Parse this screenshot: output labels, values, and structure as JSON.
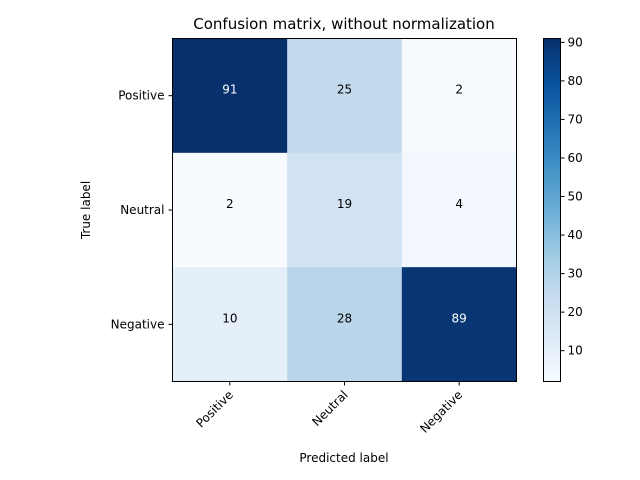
{
  "chart_data": {
    "type": "heatmap",
    "title": "Confusion matrix, without normalization",
    "xlabel": "Predicted label",
    "ylabel": "True label",
    "x_categories": [
      "Positive",
      "Neutral",
      "Negative"
    ],
    "y_categories": [
      "Positive",
      "Neutral",
      "Negative"
    ],
    "values": [
      [
        91,
        25,
        2
      ],
      [
        2,
        19,
        4
      ],
      [
        10,
        28,
        89
      ]
    ],
    "colormap": "Blues",
    "colorbar": {
      "min": 2,
      "max": 91,
      "ticks": [
        10,
        20,
        30,
        40,
        50,
        60,
        70,
        80,
        90
      ],
      "tick_labels": [
        "10",
        "20",
        "30",
        "40",
        "50",
        "60",
        "70",
        "80",
        "90"
      ]
    },
    "grid": false,
    "text_colors": {
      "dark_cell": "#ffffff",
      "light_cell": "#000000"
    }
  }
}
